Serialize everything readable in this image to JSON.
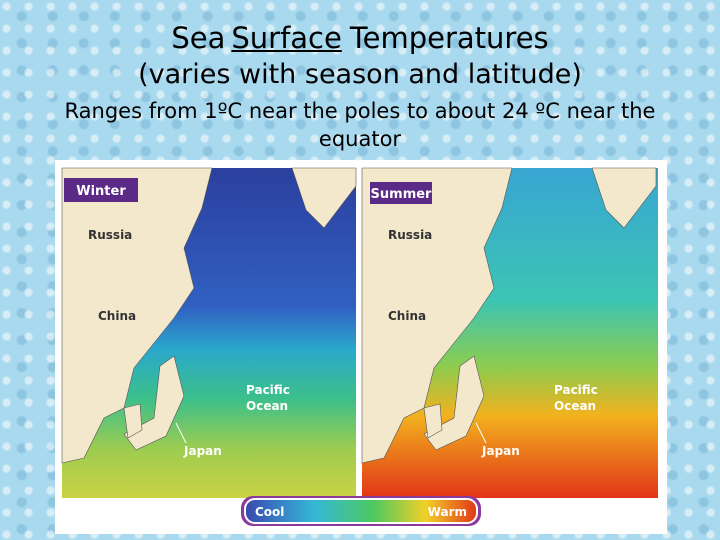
{
  "header": {
    "title_parts": [
      "Sea",
      "Surface",
      "Temperatures"
    ],
    "subtitle": "(varies with season and latitude)",
    "description": "Ranges from 1ºC near the poles to about 24 ºC near the equator"
  },
  "maps": [
    {
      "season": "Winter",
      "russia": "Russia",
      "china": "China",
      "ocean": [
        "Pacific",
        "Ocean"
      ],
      "japan": "Japan"
    },
    {
      "season": "Summer",
      "russia": "Russia",
      "china": "China",
      "ocean": [
        "Pacific",
        "Ocean"
      ],
      "japan": "Japan"
    }
  ],
  "legend": {
    "low": "Cool",
    "high": "Warm"
  }
}
